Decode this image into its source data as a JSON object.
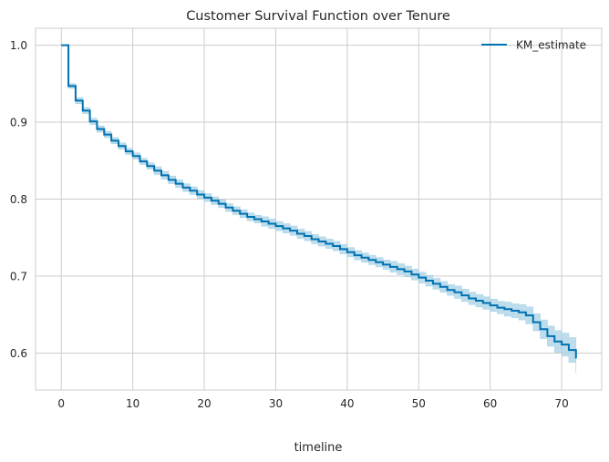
{
  "chart_data": {
    "type": "line",
    "title": "Customer Survival Function over Tenure",
    "xlabel": "timeline",
    "ylabel": "",
    "xlim": [
      -3.6,
      75.6
    ],
    "ylim": [
      0.552,
      1.022
    ],
    "grid": true,
    "legend_placement": "top-right",
    "xticks": [
      0,
      10,
      20,
      30,
      40,
      50,
      60,
      70
    ],
    "yticks": [
      0.6,
      0.7,
      0.8,
      0.9,
      1.0
    ],
    "ytick_labels": [
      "0.6",
      "0.7",
      "0.8",
      "0.9",
      "1.0"
    ],
    "colors": {
      "line": "#0072b2",
      "band": "#a8d2e6",
      "grid": "#cccccc",
      "spine": "#cccccc"
    },
    "series": [
      {
        "name": "KM_estimate",
        "step": "post",
        "x": [
          0,
          1,
          2,
          3,
          4,
          5,
          6,
          7,
          8,
          9,
          10,
          11,
          12,
          13,
          14,
          15,
          16,
          17,
          18,
          19,
          20,
          21,
          22,
          23,
          24,
          25,
          26,
          27,
          28,
          29,
          30,
          31,
          32,
          33,
          34,
          35,
          36,
          37,
          38,
          39,
          40,
          41,
          42,
          43,
          44,
          45,
          46,
          47,
          48,
          49,
          50,
          51,
          52,
          53,
          54,
          55,
          56,
          57,
          58,
          59,
          60,
          61,
          62,
          63,
          64,
          65,
          66,
          67,
          68,
          69,
          70,
          71,
          72
        ],
        "y": [
          1.0,
          0.947,
          0.928,
          0.915,
          0.901,
          0.891,
          0.884,
          0.876,
          0.869,
          0.862,
          0.856,
          0.849,
          0.843,
          0.837,
          0.831,
          0.825,
          0.82,
          0.815,
          0.811,
          0.806,
          0.802,
          0.798,
          0.794,
          0.789,
          0.785,
          0.781,
          0.777,
          0.774,
          0.771,
          0.768,
          0.765,
          0.762,
          0.759,
          0.755,
          0.752,
          0.748,
          0.745,
          0.742,
          0.739,
          0.735,
          0.731,
          0.727,
          0.724,
          0.721,
          0.718,
          0.715,
          0.712,
          0.709,
          0.706,
          0.702,
          0.698,
          0.694,
          0.69,
          0.686,
          0.682,
          0.679,
          0.675,
          0.671,
          0.668,
          0.665,
          0.662,
          0.659,
          0.657,
          0.655,
          0.653,
          0.649,
          0.64,
          0.631,
          0.622,
          0.615,
          0.611,
          0.604,
          0.593
        ],
        "lower": [
          1.0,
          0.944,
          0.924,
          0.911,
          0.897,
          0.887,
          0.88,
          0.872,
          0.865,
          0.858,
          0.852,
          0.845,
          0.839,
          0.832,
          0.826,
          0.82,
          0.815,
          0.81,
          0.806,
          0.801,
          0.797,
          0.793,
          0.789,
          0.784,
          0.78,
          0.776,
          0.772,
          0.769,
          0.765,
          0.762,
          0.759,
          0.756,
          0.753,
          0.749,
          0.746,
          0.742,
          0.739,
          0.736,
          0.733,
          0.729,
          0.725,
          0.721,
          0.718,
          0.715,
          0.712,
          0.709,
          0.705,
          0.702,
          0.699,
          0.695,
          0.691,
          0.687,
          0.683,
          0.679,
          0.675,
          0.671,
          0.667,
          0.663,
          0.66,
          0.657,
          0.654,
          0.651,
          0.648,
          0.646,
          0.643,
          0.638,
          0.629,
          0.619,
          0.609,
          0.601,
          0.596,
          0.588,
          0.574
        ],
        "upper": [
          1.0,
          0.95,
          0.932,
          0.919,
          0.905,
          0.895,
          0.888,
          0.88,
          0.873,
          0.866,
          0.86,
          0.853,
          0.847,
          0.842,
          0.836,
          0.83,
          0.825,
          0.82,
          0.816,
          0.811,
          0.807,
          0.803,
          0.799,
          0.794,
          0.79,
          0.786,
          0.782,
          0.779,
          0.777,
          0.774,
          0.771,
          0.768,
          0.765,
          0.761,
          0.758,
          0.754,
          0.751,
          0.748,
          0.745,
          0.741,
          0.737,
          0.733,
          0.73,
          0.727,
          0.724,
          0.721,
          0.719,
          0.716,
          0.713,
          0.709,
          0.705,
          0.701,
          0.697,
          0.693,
          0.689,
          0.687,
          0.683,
          0.679,
          0.676,
          0.673,
          0.67,
          0.667,
          0.666,
          0.664,
          0.663,
          0.66,
          0.651,
          0.643,
          0.635,
          0.629,
          0.626,
          0.62,
          0.612
        ]
      }
    ]
  }
}
